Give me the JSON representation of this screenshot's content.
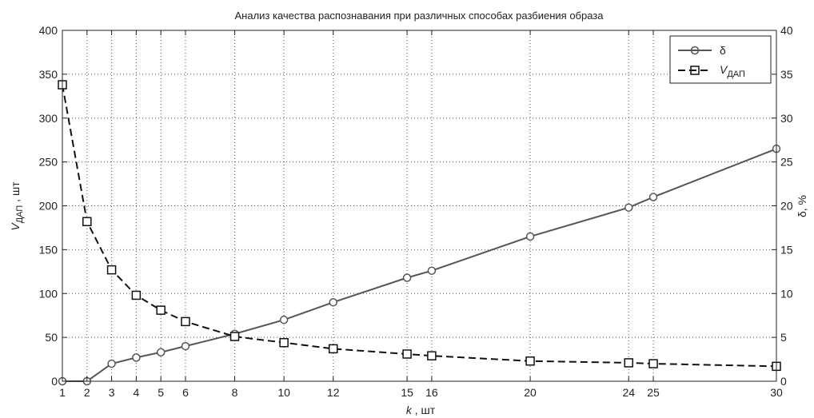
{
  "chart_data": {
    "type": "line",
    "title": "Анализ качества распознавания при различных способах разбиения образа",
    "x": [
      1,
      2,
      3,
      4,
      5,
      6,
      8,
      10,
      12,
      15,
      16,
      20,
      24,
      25,
      30
    ],
    "xticks": [
      1,
      2,
      3,
      4,
      5,
      6,
      8,
      10,
      12,
      15,
      16,
      20,
      24,
      25,
      30
    ],
    "xlabel": {
      "main": "k",
      "suffix": " , шт"
    },
    "xlim": [
      1,
      30
    ],
    "ylabel_left": {
      "main": "V",
      "sub": "ДАП",
      "suffix": " , шт"
    },
    "ylim_left": [
      0,
      400
    ],
    "yticks_left": [
      0,
      50,
      100,
      150,
      200,
      250,
      300,
      350,
      400
    ],
    "ylabel_right": "δ, %",
    "ylim_right": [
      0,
      40
    ],
    "yticks_right": [
      0,
      5,
      10,
      15,
      20,
      25,
      30,
      35,
      40
    ],
    "grid": true,
    "legend_position": "top-right",
    "series": [
      {
        "name": "δ",
        "axis": "right",
        "marker": "circle",
        "line": "solid",
        "color": "#555555",
        "values": [
          0.0,
          0.0,
          2.0,
          2.7,
          3.3,
          4.0,
          5.4,
          7.0,
          9.0,
          11.8,
          12.6,
          16.5,
          19.8,
          21.0,
          26.5
        ]
      },
      {
        "name": "V",
        "name_sub": "ДАП",
        "axis": "left",
        "marker": "square",
        "line": "dashed",
        "color": "#111111",
        "values": [
          338,
          182,
          127,
          98,
          81,
          68,
          51,
          44,
          37,
          31,
          29,
          23,
          21,
          20,
          17
        ]
      }
    ]
  }
}
